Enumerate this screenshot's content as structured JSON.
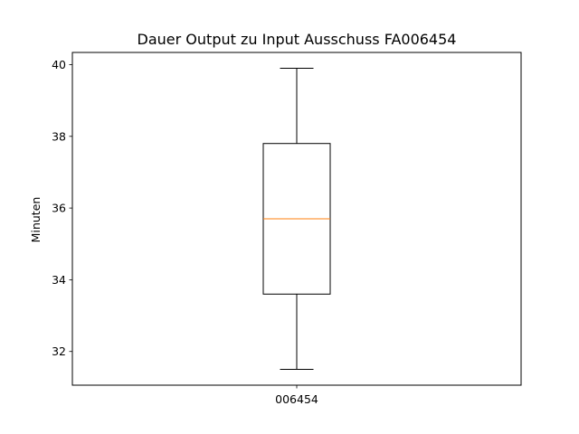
{
  "chart_data": {
    "type": "box",
    "title": "Dauer Output zu Input Ausschuss FA006454",
    "xlabel": "",
    "ylabel": "Minuten",
    "categories": [
      "006454"
    ],
    "boxes": [
      {
        "category": "006454",
        "whisker_low": 31.5,
        "q1": 33.6,
        "median": 35.7,
        "q3": 37.8,
        "whisker_high": 39.9
      }
    ],
    "ylim": [
      31.06,
      40.34
    ],
    "yticks": [
      32,
      34,
      36,
      38,
      40
    ],
    "grid": false,
    "colors": {
      "box": "#000000",
      "median": "#ff7f0e",
      "whisker": "#000000"
    }
  }
}
